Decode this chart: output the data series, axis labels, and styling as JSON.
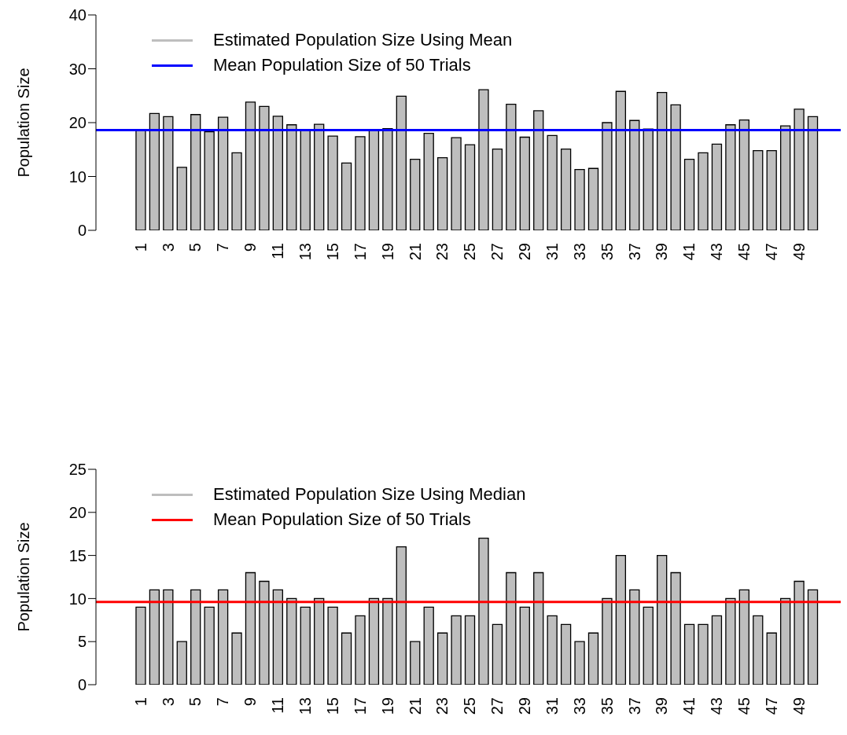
{
  "chart_data": [
    {
      "type": "bar",
      "ylabel": "Population Size",
      "categories": [
        "1",
        null,
        "3",
        null,
        "5",
        null,
        "7",
        null,
        "9",
        null,
        "11",
        null,
        "13",
        null,
        "15",
        null,
        "17",
        null,
        "19",
        null,
        "21",
        null,
        "23",
        null,
        "25",
        null,
        "27",
        null,
        "29",
        null,
        "31",
        null,
        "33",
        null,
        "35",
        null,
        "37",
        null,
        "39",
        null,
        "41",
        null,
        "43",
        null,
        "45",
        null,
        "47",
        null,
        "49",
        null
      ],
      "series": [
        {
          "name": "Estimated Population Size Using Mean",
          "color": "#bebebe",
          "values": [
            18.6,
            21.7,
            21.1,
            11.7,
            21.5,
            18.3,
            21.0,
            14.4,
            23.8,
            23.0,
            21.2,
            19.6,
            18.6,
            19.7,
            17.5,
            12.5,
            17.4,
            18.6,
            18.9,
            24.9,
            13.2,
            18.0,
            13.5,
            17.2,
            15.9,
            26.1,
            15.1,
            23.4,
            17.3,
            22.2,
            17.6,
            15.1,
            11.3,
            11.5,
            20.0,
            25.8,
            20.4,
            18.8,
            25.6,
            23.3,
            13.2,
            14.4,
            16.0,
            19.6,
            20.5,
            14.8,
            14.8,
            19.4,
            22.5,
            21.1
          ]
        }
      ],
      "ref_lines": [
        {
          "axis": "y",
          "value": 18.6,
          "label": "Mean Population Size of 50 Trials",
          "color": "#0000ff"
        }
      ],
      "ylim": [
        0,
        40
      ],
      "yticks": [
        0,
        10,
        20,
        30,
        40
      ],
      "grid": false,
      "legend": "top left"
    },
    {
      "type": "bar",
      "ylabel": "Population Size",
      "categories": [
        "1",
        null,
        "3",
        null,
        "5",
        null,
        "7",
        null,
        "9",
        null,
        "11",
        null,
        "13",
        null,
        "15",
        null,
        "17",
        null,
        "19",
        null,
        "21",
        null,
        "23",
        null,
        "25",
        null,
        "27",
        null,
        "29",
        null,
        "31",
        null,
        "33",
        null,
        "35",
        null,
        "37",
        null,
        "39",
        null,
        "41",
        null,
        "43",
        null,
        "45",
        null,
        "47",
        null,
        "49",
        null
      ],
      "series": [
        {
          "name": "Estimated Population Size Using Median",
          "color": "#bebebe",
          "values": [
            9,
            11,
            11,
            5,
            11,
            9,
            11,
            6,
            13,
            12,
            11,
            10,
            9,
            10,
            9,
            6,
            8,
            10,
            10,
            16,
            5,
            9,
            6,
            8,
            8,
            17,
            7,
            13,
            9,
            13,
            8,
            7,
            5,
            6,
            10,
            15,
            11,
            9,
            15,
            13,
            7,
            7,
            8,
            10,
            11,
            8,
            6,
            10,
            12,
            11
          ]
        }
      ],
      "ref_lines": [
        {
          "axis": "y",
          "value": 9.6,
          "label": "Mean Population Size of 50 Trials",
          "color": "#ff0000"
        }
      ],
      "ylim": [
        0,
        25
      ],
      "yticks": [
        0,
        5,
        10,
        15,
        20,
        25
      ],
      "grid": false,
      "legend": "top left"
    }
  ]
}
